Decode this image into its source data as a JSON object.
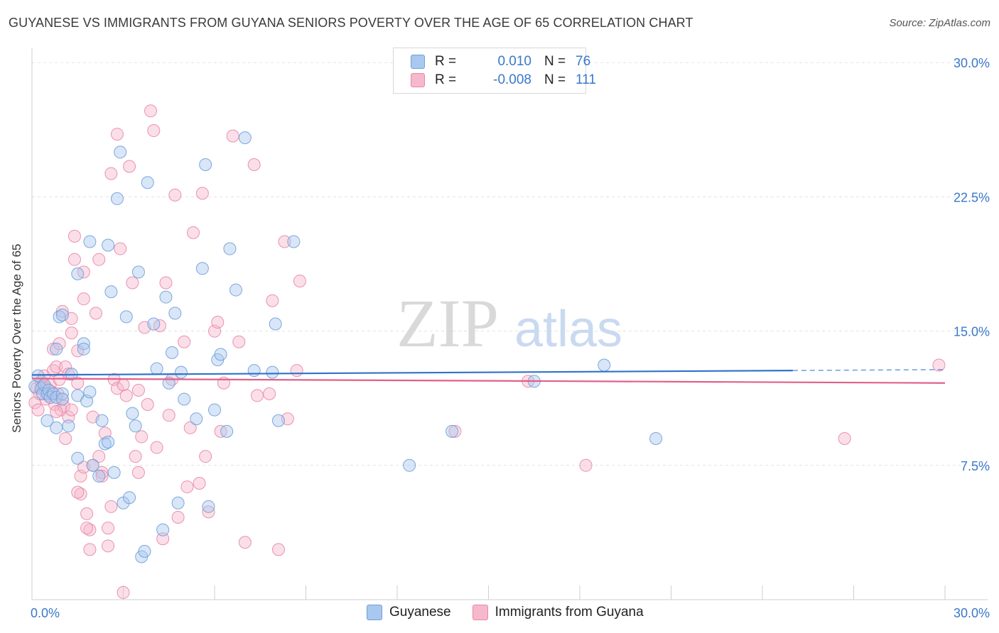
{
  "title": "GUYANESE VS IMMIGRANTS FROM GUYANA SENIORS POVERTY OVER THE AGE OF 65 CORRELATION CHART",
  "source": "Source: ZipAtlas.com",
  "watermark": {
    "zip": "ZIP",
    "atlas": "atlas"
  },
  "legend": {
    "rows": [
      {
        "r_label": "R =",
        "r_value": "0.010",
        "n_label": "N =",
        "n_value": "76"
      },
      {
        "r_label": "R =",
        "r_value": "-0.008",
        "n_label": "N =",
        "n_value": "111"
      }
    ]
  },
  "bottom_legend": {
    "series1": "Guyanese",
    "series2": "Immigrants from Guyana"
  },
  "colors": {
    "blue_fill": "#a9c8ef",
    "blue_stroke": "#6f9fd8",
    "blue_line": "#2f72cc",
    "pink_fill": "#f6b9cc",
    "pink_stroke": "#e986a6",
    "pink_line": "#e0608a",
    "tick_label": "#3a78c9",
    "grid": "#e3e3e3"
  },
  "chart_data": {
    "type": "scatter",
    "title": "GUYANESE VS IMMIGRANTS FROM GUYANA SENIORS POVERTY OVER THE AGE OF 65 CORRELATION CHART",
    "xlabel": "",
    "ylabel": "Seniors Poverty Over the Age of 65",
    "xlim": [
      0,
      30
    ],
    "ylim": [
      0,
      30.8
    ],
    "x_tick_labels": [
      "0.0%",
      "30.0%"
    ],
    "y_ticks": [
      7.5,
      15.0,
      22.5,
      30.0
    ],
    "y_tick_labels": [
      "7.5%",
      "15.0%",
      "22.5%",
      "30.0%"
    ],
    "grid": true,
    "legend_position": "top-center",
    "series": [
      {
        "name": "Guyanese",
        "r": 0.01,
        "n": 76,
        "trend": {
          "x0": 0,
          "y0": 12.55,
          "x1": 25,
          "y1": 12.8,
          "dashed_to_x": 30,
          "dashed_to_y": 12.85
        },
        "points": [
          [
            0.1,
            11.9
          ],
          [
            0.2,
            12.5
          ],
          [
            0.3,
            11.8
          ],
          [
            0.35,
            11.5
          ],
          [
            0.4,
            12.0
          ],
          [
            0.5,
            11.5
          ],
          [
            0.55,
            11.7
          ],
          [
            0.6,
            11.3
          ],
          [
            0.7,
            11.5
          ],
          [
            0.8,
            11.3
          ],
          [
            0.5,
            10.0
          ],
          [
            0.8,
            14.0
          ],
          [
            0.8,
            9.6
          ],
          [
            1.0,
            11.5
          ],
          [
            0.9,
            15.8
          ],
          [
            1.0,
            15.9
          ],
          [
            1.3,
            12.6
          ],
          [
            1.0,
            11.2
          ],
          [
            1.2,
            9.7
          ],
          [
            1.5,
            11.4
          ],
          [
            1.5,
            7.9
          ],
          [
            1.5,
            18.2
          ],
          [
            1.7,
            14.3
          ],
          [
            1.7,
            14.0
          ],
          [
            1.8,
            11.1
          ],
          [
            1.9,
            11.6
          ],
          [
            1.9,
            20.0
          ],
          [
            2.0,
            7.5
          ],
          [
            2.2,
            6.9
          ],
          [
            2.3,
            10.0
          ],
          [
            2.4,
            8.7
          ],
          [
            2.5,
            8.8
          ],
          [
            2.5,
            19.8
          ],
          [
            2.6,
            17.2
          ],
          [
            2.7,
            7.1
          ],
          [
            2.8,
            22.4
          ],
          [
            2.9,
            25.0
          ],
          [
            3.0,
            5.4
          ],
          [
            3.1,
            15.8
          ],
          [
            3.2,
            5.7
          ],
          [
            3.3,
            10.4
          ],
          [
            3.4,
            9.7
          ],
          [
            3.5,
            18.3
          ],
          [
            3.6,
            2.4
          ],
          [
            3.7,
            2.7
          ],
          [
            3.8,
            23.3
          ],
          [
            4.0,
            15.4
          ],
          [
            4.1,
            12.9
          ],
          [
            4.3,
            3.9
          ],
          [
            4.4,
            16.9
          ],
          [
            4.5,
            12.1
          ],
          [
            4.6,
            13.8
          ],
          [
            4.7,
            16.0
          ],
          [
            4.8,
            5.4
          ],
          [
            4.9,
            12.7
          ],
          [
            5.0,
            11.2
          ],
          [
            5.4,
            10.1
          ],
          [
            5.6,
            18.5
          ],
          [
            5.7,
            24.3
          ],
          [
            5.8,
            5.2
          ],
          [
            6.0,
            10.6
          ],
          [
            6.1,
            13.4
          ],
          [
            6.2,
            13.7
          ],
          [
            6.4,
            9.4
          ],
          [
            6.5,
            19.6
          ],
          [
            6.7,
            17.3
          ],
          [
            7.0,
            25.8
          ],
          [
            7.3,
            12.8
          ],
          [
            7.9,
            12.7
          ],
          [
            8.0,
            15.4
          ],
          [
            8.1,
            10.0
          ],
          [
            8.6,
            20.0
          ],
          [
            12.4,
            7.5
          ],
          [
            13.8,
            9.4
          ],
          [
            16.5,
            12.2
          ],
          [
            18.8,
            13.1
          ],
          [
            20.5,
            9.0
          ]
        ]
      },
      {
        "name": "Immigrants from Guyana",
        "r": -0.008,
        "n": 111,
        "trend": {
          "x0": 0,
          "y0": 12.35,
          "x1": 30,
          "y1": 12.1
        },
        "points": [
          [
            0.1,
            11.0
          ],
          [
            0.15,
            11.8
          ],
          [
            0.2,
            10.6
          ],
          [
            0.25,
            11.5
          ],
          [
            0.3,
            12.2
          ],
          [
            0.35,
            11.9
          ],
          [
            0.4,
            12.5
          ],
          [
            0.45,
            11.2
          ],
          [
            0.5,
            11.8
          ],
          [
            0.55,
            11.4
          ],
          [
            0.6,
            12.0
          ],
          [
            0.65,
            11.6
          ],
          [
            0.7,
            12.8
          ],
          [
            0.7,
            14.0
          ],
          [
            0.75,
            10.9
          ],
          [
            0.8,
            13.0
          ],
          [
            0.85,
            11.5
          ],
          [
            0.9,
            14.3
          ],
          [
            0.9,
            12.3
          ],
          [
            0.95,
            10.6
          ],
          [
            1.0,
            16.1
          ],
          [
            1.0,
            11.2
          ],
          [
            1.05,
            10.8
          ],
          [
            1.1,
            13.0
          ],
          [
            1.1,
            9.0
          ],
          [
            1.2,
            12.6
          ],
          [
            1.2,
            10.2
          ],
          [
            1.3,
            15.7
          ],
          [
            1.3,
            14.9
          ],
          [
            1.3,
            10.6
          ],
          [
            1.4,
            19.0
          ],
          [
            1.4,
            20.3
          ],
          [
            1.5,
            13.9
          ],
          [
            1.5,
            12.1
          ],
          [
            1.6,
            6.9
          ],
          [
            1.6,
            5.9
          ],
          [
            1.7,
            7.4
          ],
          [
            1.7,
            16.8
          ],
          [
            1.7,
            18.3
          ],
          [
            1.8,
            4.8
          ],
          [
            1.9,
            3.9
          ],
          [
            1.9,
            2.8
          ],
          [
            2.0,
            10.2
          ],
          [
            2.0,
            7.5
          ],
          [
            2.1,
            16.0
          ],
          [
            2.2,
            8.0
          ],
          [
            2.2,
            19.0
          ],
          [
            2.3,
            7.1
          ],
          [
            2.4,
            9.3
          ],
          [
            2.5,
            4.0
          ],
          [
            2.5,
            3.0
          ],
          [
            2.6,
            23.8
          ],
          [
            2.7,
            12.3
          ],
          [
            2.8,
            11.8
          ],
          [
            2.8,
            26.0
          ],
          [
            2.9,
            19.6
          ],
          [
            3.0,
            12.0
          ],
          [
            3.1,
            11.4
          ],
          [
            3.2,
            24.2
          ],
          [
            3.3,
            17.7
          ],
          [
            3.4,
            8.0
          ],
          [
            3.5,
            7.1
          ],
          [
            3.5,
            11.7
          ],
          [
            3.6,
            9.1
          ],
          [
            3.7,
            15.2
          ],
          [
            3.8,
            10.9
          ],
          [
            3.9,
            27.3
          ],
          [
            4.0,
            26.2
          ],
          [
            4.1,
            8.5
          ],
          [
            4.2,
            15.3
          ],
          [
            4.3,
            3.4
          ],
          [
            4.4,
            17.7
          ],
          [
            4.5,
            10.3
          ],
          [
            4.6,
            12.3
          ],
          [
            4.7,
            22.6
          ],
          [
            4.8,
            4.6
          ],
          [
            5.0,
            14.4
          ],
          [
            5.1,
            6.3
          ],
          [
            5.2,
            9.6
          ],
          [
            5.3,
            20.5
          ],
          [
            5.5,
            6.5
          ],
          [
            5.6,
            22.7
          ],
          [
            5.7,
            8.0
          ],
          [
            5.8,
            4.9
          ],
          [
            6.0,
            15.0
          ],
          [
            6.1,
            15.5
          ],
          [
            6.2,
            9.4
          ],
          [
            6.3,
            12.1
          ],
          [
            6.6,
            25.9
          ],
          [
            6.8,
            14.4
          ],
          [
            7.0,
            3.2
          ],
          [
            7.3,
            24.3
          ],
          [
            7.4,
            11.4
          ],
          [
            7.8,
            11.5
          ],
          [
            7.9,
            16.7
          ],
          [
            8.1,
            2.8
          ],
          [
            8.3,
            20.0
          ],
          [
            8.4,
            10.1
          ],
          [
            8.7,
            12.8
          ],
          [
            8.8,
            17.8
          ],
          [
            13.9,
            9.4
          ],
          [
            16.3,
            12.2
          ],
          [
            18.2,
            7.5
          ],
          [
            26.7,
            9.0
          ],
          [
            29.8,
            13.1
          ],
          [
            3.0,
            0.4
          ],
          [
            2.3,
            6.9
          ],
          [
            1.8,
            4.0
          ],
          [
            0.8,
            10.5
          ],
          [
            2.6,
            5.2
          ],
          [
            1.5,
            6.0
          ]
        ]
      }
    ]
  }
}
